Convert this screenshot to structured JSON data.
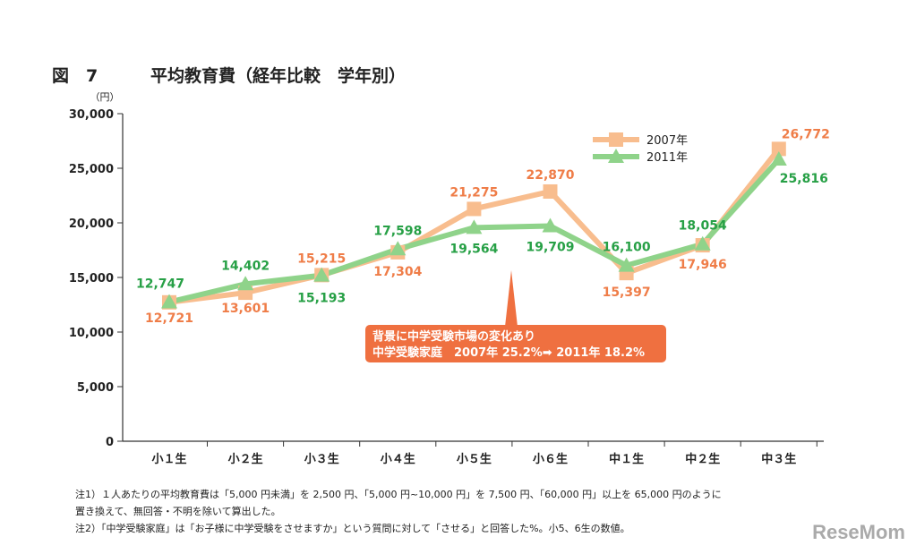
{
  "figure_label": "図　7",
  "chart_data": {
    "type": "line",
    "title": "平均教育費（経年比較　学年別）",
    "ylabel": "（円）",
    "ylim": [
      0,
      30000
    ],
    "yticks": [
      "0",
      "5,000",
      "10,000",
      "15,000",
      "20,000",
      "25,000",
      "30,000"
    ],
    "ytick_values": [
      0,
      5000,
      10000,
      15000,
      20000,
      25000,
      30000
    ],
    "categories": [
      "小１生",
      "小２生",
      "小３生",
      "小４生",
      "小５生",
      "小６生",
      "中１生",
      "中２生",
      "中３生"
    ],
    "legend_position": "top-right",
    "grid": false,
    "series": [
      {
        "name": "2007年",
        "color": "#f8bd8e",
        "label_color": "#ef7d48",
        "marker": "square",
        "values": [
          12721,
          13601,
          15215,
          17304,
          21275,
          22870,
          15397,
          17946,
          26772
        ],
        "labels": [
          "12,721",
          "13,601",
          "15,215",
          "17,304",
          "21,275",
          "22,870",
          "15,397",
          "17,946",
          "26,772"
        ]
      },
      {
        "name": "2011年",
        "color": "#8fd38a",
        "label_color": "#27a046",
        "marker": "triangle",
        "values": [
          12747,
          14402,
          15193,
          17598,
          19564,
          19709,
          16100,
          18054,
          25816
        ],
        "labels": [
          "12,747",
          "14,402",
          "15,193",
          "17,598",
          "19,564",
          "19,709",
          "16,100",
          "18,054",
          "25,816"
        ]
      }
    ],
    "annotation": {
      "line1": "背景に中学受験市場の変化あり",
      "line2": "中学受験家庭　2007年 25.2%➡ 2011年 18.2%",
      "color": "#ef7040"
    }
  },
  "notes": [
    "注1）１人あたりの平均教育費は「5,000 円未満」を 2,500 円、「5,000 円~10,000 円」を 7,500 円、「60,000 円」以上を 65,000 円のように",
    "置き換えて、無回答・不明を除いて算出した。",
    "注2）「中学受験家庭」は「お子様に中学受験をさせますか」という質問に対して「させる」と回答した%。小5、6生の数値。"
  ],
  "logo": "ReseMom"
}
